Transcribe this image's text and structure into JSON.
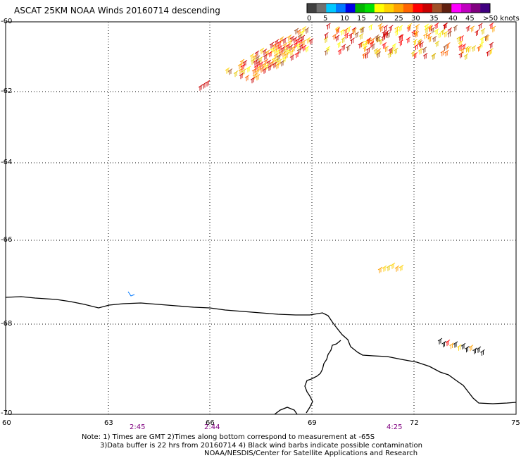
{
  "title": "ASCAT 25KM NOAA Winds 20160714 descending",
  "colorbar": {
    "labels": [
      "0",
      "5",
      "10",
      "15",
      "20",
      "25",
      "30",
      "35",
      "40",
      "45",
      ">50 knots"
    ],
    "colors": [
      "#404040",
      "#707070",
      "#00c8ff",
      "#0078ff",
      "#0000e6",
      "#00b400",
      "#00e000",
      "#ffff00",
      "#ffd200",
      "#ffa000",
      "#ff6400",
      "#ff0000",
      "#c80000",
      "#a05028",
      "#602010",
      "#ff00ff",
      "#c000c0",
      "#800080",
      "#400080"
    ]
  },
  "lat_labels": [
    "-60",
    "-62",
    "-64",
    "-66",
    "-68",
    "-70"
  ],
  "lon_labels": [
    "60",
    "63",
    "66",
    "69",
    "72",
    "75"
  ],
  "time_labels": [
    "2:45",
    "2:44",
    "4:25"
  ],
  "notes": [
    "Note: 1) Times are GMT 2)Times along bottom correspond to measurement at -65S",
    "3)Data buffer is 22 hrs from 20160714 4) Black wind barbs indicate possible contamination",
    "NOAA/NESDIS/Center for Satellite Applications and Research"
  ]
}
